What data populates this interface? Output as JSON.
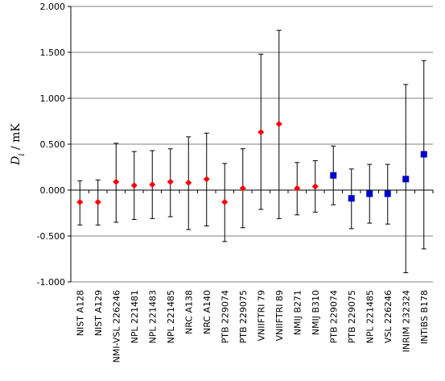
{
  "chart_data": {
    "type": "scatter",
    "categories": [
      "NIST A128",
      "NIST A129",
      "NMI-VSL 226246",
      "NPL 221481",
      "NPL 221483",
      "NPL 221485",
      "NRC A138",
      "NRC A140",
      "PTB 229074",
      "PTB 229075",
      "VNIIFTRI 79",
      "VNIIFTRI 89",
      "NMIJ B271",
      "NMIJ B310",
      "PTB 229074",
      "PTB 229075",
      "NPL 221485",
      "VSL 226246",
      "INRIM 232324",
      "INTiBS B178"
    ],
    "y_label_main": "D",
    "y_label_sub": "i",
    "y_label_unit": " / mK",
    "ylim": [
      -1.0,
      2.0
    ],
    "y_ticks": [
      {
        "value": 2.0,
        "label": "2.000"
      },
      {
        "value": 1.5,
        "label": "1.500"
      },
      {
        "value": 1.0,
        "label": "1.000"
      },
      {
        "value": 0.5,
        "label": "0.500"
      },
      {
        "value": 0.0,
        "label": "0.000"
      },
      {
        "value": -0.5,
        "label": "-0.500"
      },
      {
        "value": -1.0,
        "label": "-1.000"
      }
    ],
    "grid": "horizontal",
    "series": [
      {
        "marker": "diamond",
        "color": "#ff0000",
        "indices": [
          0,
          1,
          2,
          3,
          4,
          5,
          6,
          7,
          8,
          9,
          10,
          11,
          12,
          13
        ],
        "values": [
          -0.13,
          -0.13,
          0.09,
          0.05,
          0.06,
          0.09,
          0.08,
          0.12,
          -0.13,
          0.02,
          0.63,
          0.72,
          0.02,
          0.04
        ],
        "err_low": [
          -0.38,
          -0.38,
          -0.35,
          -0.32,
          -0.31,
          -0.29,
          -0.43,
          -0.39,
          -0.56,
          -0.41,
          -0.21,
          -0.31,
          -0.27,
          -0.24
        ],
        "err_high": [
          0.1,
          0.11,
          0.51,
          0.42,
          0.43,
          0.45,
          0.58,
          0.62,
          0.29,
          0.45,
          1.48,
          1.74,
          0.3,
          0.32
        ]
      },
      {
        "marker": "square",
        "color": "#0000cc",
        "indices": [
          14,
          15,
          16,
          17,
          18,
          19
        ],
        "values": [
          0.16,
          -0.09,
          -0.04,
          -0.04,
          0.12,
          0.39
        ],
        "err_low": [
          -0.16,
          -0.42,
          -0.36,
          -0.37,
          -0.9,
          -0.64
        ],
        "err_high": [
          0.48,
          0.23,
          0.28,
          0.28,
          1.15,
          1.41
        ]
      }
    ]
  }
}
